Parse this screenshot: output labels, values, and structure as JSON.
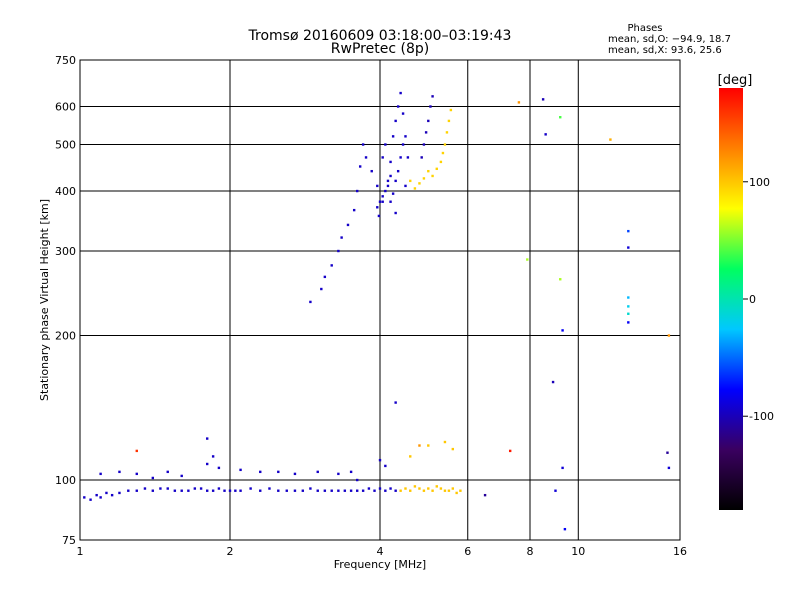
{
  "chart_data": {
    "type": "scatter",
    "title": "Tromsø 20160609 03:18:00–03:19:43",
    "subtitle": "RwPretec (8p)",
    "xlabel": "Frequency [MHz]",
    "ylabel": "Stationary phase Virtual Height [km]",
    "xscale": "log",
    "yscale": "log",
    "xlim": [
      1,
      16
    ],
    "ylim": [
      75,
      750
    ],
    "xticks": [
      1,
      2,
      4,
      6,
      8,
      10,
      16
    ],
    "yticks": [
      75,
      100,
      200,
      300,
      400,
      500,
      600,
      750
    ],
    "grid": true,
    "phase_info": {
      "title": "Phases",
      "line_o": "mean, sd,O: −94.9, 18.7",
      "line_x": "mean, sd,X:  93.6, 25.6"
    },
    "colorbar": {
      "label": "[deg]",
      "ticks": [
        100,
        0,
        -100
      ],
      "range": [
        -180,
        180
      ],
      "colors": [
        "#000000",
        "#3a0060",
        "#0000ff",
        "#00c8ff",
        "#00ff60",
        "#ffff00",
        "#ff8000",
        "#ff0000"
      ]
    },
    "series": [
      {
        "name": "O-mode bottom trace",
        "phase_deg": -95,
        "points": [
          [
            1.02,
            92
          ],
          [
            1.05,
            91
          ],
          [
            1.08,
            93
          ],
          [
            1.1,
            92
          ],
          [
            1.13,
            94
          ],
          [
            1.16,
            93
          ],
          [
            1.2,
            94
          ],
          [
            1.25,
            95
          ],
          [
            1.3,
            95
          ],
          [
            1.35,
            96
          ],
          [
            1.4,
            95
          ],
          [
            1.45,
            96
          ],
          [
            1.5,
            96
          ],
          [
            1.55,
            95
          ],
          [
            1.6,
            95
          ],
          [
            1.65,
            95
          ],
          [
            1.7,
            96
          ],
          [
            1.75,
            96
          ],
          [
            1.8,
            95
          ],
          [
            1.85,
            95
          ],
          [
            1.9,
            96
          ],
          [
            1.95,
            95
          ],
          [
            2.0,
            95
          ],
          [
            2.05,
            95
          ],
          [
            2.1,
            95
          ],
          [
            2.2,
            96
          ],
          [
            2.3,
            95
          ],
          [
            2.4,
            96
          ],
          [
            2.5,
            95
          ],
          [
            2.6,
            95
          ],
          [
            2.7,
            95
          ],
          [
            2.8,
            95
          ],
          [
            2.9,
            96
          ],
          [
            3.0,
            95
          ],
          [
            3.1,
            95
          ],
          [
            3.2,
            95
          ],
          [
            3.3,
            95
          ],
          [
            3.4,
            95
          ],
          [
            3.5,
            95
          ],
          [
            3.6,
            95
          ],
          [
            3.7,
            95
          ],
          [
            3.8,
            96
          ],
          [
            3.9,
            95
          ],
          [
            4.0,
            96
          ],
          [
            4.1,
            95
          ],
          [
            4.2,
            96
          ],
          [
            4.3,
            95
          ]
        ]
      },
      {
        "name": "O-mode upper scatter",
        "phase_deg": -95,
        "points": [
          [
            1.1,
            103
          ],
          [
            1.2,
            104
          ],
          [
            1.3,
            103
          ],
          [
            1.4,
            101
          ],
          [
            1.5,
            104
          ],
          [
            1.6,
            102
          ],
          [
            1.8,
            108
          ],
          [
            1.85,
            112
          ],
          [
            1.9,
            106
          ],
          [
            2.1,
            105
          ],
          [
            2.3,
            104
          ],
          [
            2.5,
            104
          ],
          [
            2.7,
            103
          ],
          [
            3.0,
            104
          ],
          [
            3.3,
            103
          ],
          [
            3.5,
            104
          ],
          [
            3.6,
            100
          ],
          [
            4.0,
            110
          ],
          [
            4.1,
            107
          ],
          [
            4.3,
            145
          ]
        ]
      },
      {
        "name": "O-mode F trace",
        "phase_deg": -95,
        "points": [
          [
            2.9,
            235
          ],
          [
            3.05,
            250
          ],
          [
            3.1,
            265
          ],
          [
            3.2,
            280
          ],
          [
            3.3,
            300
          ],
          [
            3.35,
            320
          ],
          [
            3.45,
            340
          ],
          [
            3.55,
            365
          ],
          [
            3.6,
            400
          ],
          [
            3.65,
            450
          ],
          [
            3.7,
            500
          ],
          [
            3.75,
            470
          ],
          [
            3.85,
            440
          ],
          [
            3.95,
            410
          ],
          [
            4.05,
            380
          ],
          [
            4.15,
            420
          ],
          [
            4.2,
            460
          ],
          [
            4.25,
            520
          ],
          [
            4.3,
            560
          ],
          [
            4.35,
            600
          ],
          [
            4.4,
            640
          ],
          [
            4.45,
            580
          ],
          [
            4.5,
            520
          ],
          [
            4.55,
            470
          ]
        ]
      },
      {
        "name": "O-mode F cluster",
        "phase_deg": -95,
        "points": [
          [
            3.95,
            370
          ],
          [
            4.0,
            380
          ],
          [
            4.05,
            390
          ],
          [
            4.1,
            400
          ],
          [
            4.15,
            410
          ],
          [
            4.2,
            380
          ],
          [
            4.25,
            395
          ],
          [
            4.3,
            420
          ],
          [
            4.35,
            440
          ],
          [
            4.4,
            470
          ],
          [
            4.45,
            500
          ],
          [
            4.5,
            410
          ],
          [
            4.05,
            470
          ],
          [
            4.1,
            500
          ],
          [
            4.2,
            430
          ],
          [
            4.3,
            360
          ],
          [
            3.98,
            355
          ]
        ]
      },
      {
        "name": "O-mode secondary F trace",
        "phase_deg": -100,
        "points": [
          [
            4.85,
            470
          ],
          [
            4.9,
            500
          ],
          [
            4.95,
            530
          ],
          [
            5.0,
            560
          ],
          [
            5.05,
            600
          ],
          [
            5.1,
            630
          ]
        ]
      },
      {
        "name": "X-mode F trace",
        "phase_deg": 95,
        "points": [
          [
            4.6,
            420
          ],
          [
            4.7,
            405
          ],
          [
            4.8,
            415
          ],
          [
            4.9,
            425
          ],
          [
            5.0,
            440
          ],
          [
            5.1,
            430
          ],
          [
            5.2,
            445
          ],
          [
            5.3,
            460
          ],
          [
            5.35,
            480
          ],
          [
            5.4,
            500
          ],
          [
            5.45,
            530
          ],
          [
            5.5,
            560
          ],
          [
            5.55,
            590
          ]
        ]
      },
      {
        "name": "X-mode E trace",
        "phase_deg": 100,
        "points": [
          [
            4.4,
            95
          ],
          [
            4.5,
            96
          ],
          [
            4.6,
            95
          ],
          [
            4.7,
            97
          ],
          [
            4.8,
            96
          ],
          [
            4.9,
            95
          ],
          [
            5.0,
            96
          ],
          [
            5.1,
            95
          ],
          [
            5.2,
            97
          ],
          [
            5.3,
            96
          ],
          [
            5.4,
            95
          ],
          [
            5.5,
            95
          ],
          [
            5.6,
            96
          ],
          [
            5.7,
            94
          ],
          [
            5.8,
            95
          ],
          [
            4.6,
            112
          ],
          [
            5.0,
            118
          ],
          [
            5.4,
            120
          ],
          [
            5.6,
            116
          ]
        ]
      },
      {
        "name": "Sparse points",
        "phase_deg": 0,
        "points": [
          [
            1.3,
            115,
            160
          ],
          [
            1.8,
            122,
            -95
          ],
          [
            4.8,
            118,
            120
          ],
          [
            6.5,
            93,
            -110
          ],
          [
            7.3,
            115,
            170
          ],
          [
            7.6,
            612,
            120
          ],
          [
            7.9,
            288,
            60
          ],
          [
            8.5,
            621,
            -100
          ],
          [
            8.6,
            525,
            -95
          ],
          [
            8.9,
            160,
            -100
          ],
          [
            9.0,
            95,
            -90
          ],
          [
            9.2,
            570,
            40
          ],
          [
            9.2,
            262,
            60
          ],
          [
            9.3,
            205,
            -80
          ],
          [
            9.3,
            106,
            -90
          ],
          [
            9.4,
            79,
            -80
          ],
          [
            11.6,
            512,
            110
          ],
          [
            12.6,
            330,
            -60
          ],
          [
            12.6,
            305,
            -90
          ],
          [
            12.6,
            240,
            -30
          ],
          [
            12.6,
            230,
            -20
          ],
          [
            12.6,
            222,
            -10
          ],
          [
            12.6,
            213,
            -80
          ],
          [
            15.2,
            200,
            120
          ],
          [
            15.1,
            114,
            -110
          ],
          [
            15.2,
            106,
            -90
          ]
        ]
      }
    ]
  }
}
